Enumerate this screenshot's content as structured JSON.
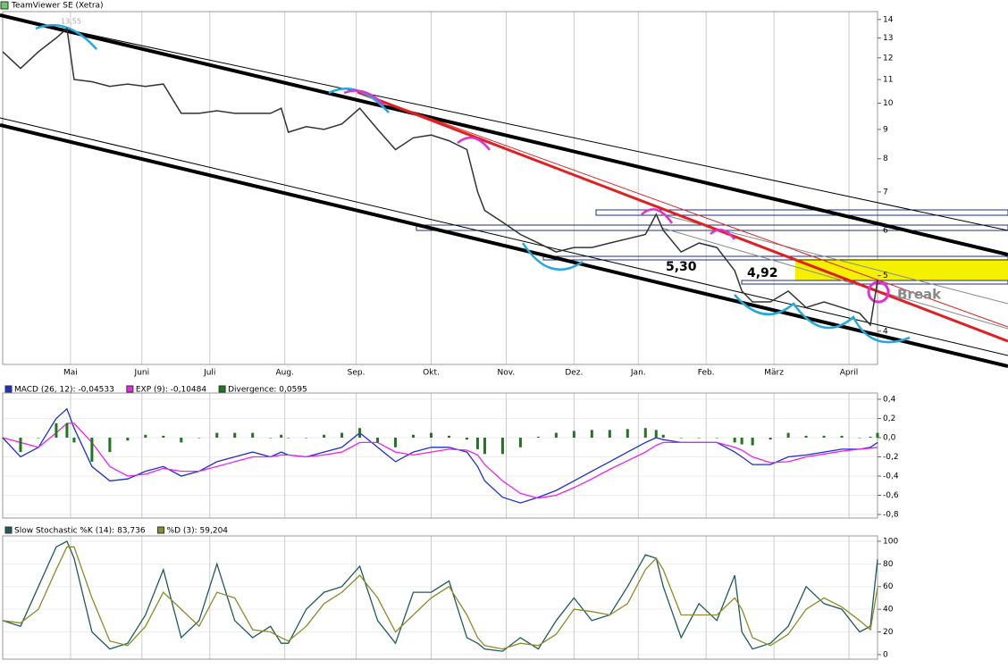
{
  "chart_data": [
    {
      "type": "line",
      "title": "TeamViewer SE (Xetra)",
      "log": true,
      "grid": true,
      "color": "#333333",
      "x": [
        0,
        5,
        10,
        15,
        18,
        20,
        25,
        30,
        35,
        40,
        45,
        50,
        55,
        60,
        65,
        70,
        75,
        78,
        80,
        85,
        90,
        95,
        100,
        105,
        110,
        115,
        120,
        125,
        130,
        133,
        135,
        140,
        145,
        150,
        155,
        160,
        165,
        170,
        175,
        180,
        183,
        185,
        190,
        195,
        200,
        205,
        207,
        210,
        215,
        220,
        225,
        230,
        235,
        240,
        243,
        245
      ],
      "values": [
        12.3,
        11.5,
        12.3,
        13.0,
        13.5,
        11.0,
        10.9,
        10.7,
        10.8,
        10.7,
        10.8,
        9.6,
        9.6,
        9.7,
        9.6,
        9.6,
        9.6,
        9.8,
        8.9,
        9.1,
        9.0,
        9.2,
        9.8,
        9.0,
        8.3,
        8.7,
        8.8,
        8.6,
        8.3,
        7.0,
        6.5,
        6.2,
        5.9,
        5.7,
        5.5,
        5.6,
        5.6,
        5.7,
        5.8,
        5.9,
        6.4,
        6.0,
        5.5,
        5.7,
        5.6,
        5.1,
        4.7,
        4.5,
        4.5,
        4.7,
        4.4,
        4.5,
        4.4,
        4.3,
        4.1,
        4.9
      ],
      "xlim": [
        0,
        245
      ],
      "xticks": [
        {
          "value": 19,
          "label": "Mai"
        },
        {
          "value": 39,
          "label": "Juni"
        },
        {
          "value": 58,
          "label": "Juli"
        },
        {
          "value": 79,
          "label": "Aug."
        },
        {
          "value": 99,
          "label": "Sep."
        },
        {
          "value": 120,
          "label": "Okt."
        },
        {
          "value": 141,
          "label": "Nov."
        },
        {
          "value": 160,
          "label": "Dez."
        },
        {
          "value": 178,
          "label": "Jan."
        },
        {
          "value": 197,
          "label": "Feb."
        },
        {
          "value": 216,
          "label": "März"
        },
        {
          "value": 237,
          "label": "April"
        }
      ],
      "ylim": [
        3.5,
        14.45
      ],
      "yticks": [
        4,
        5,
        6,
        7,
        8,
        9,
        10,
        11,
        12,
        13,
        14
      ],
      "annotations": [
        "5,30",
        "4,92",
        "Break",
        "13,55"
      ]
    },
    {
      "type": "line",
      "grid": true,
      "x": [
        0,
        5,
        10,
        15,
        18,
        20,
        25,
        30,
        35,
        40,
        45,
        50,
        55,
        60,
        65,
        70,
        75,
        78,
        80,
        85,
        90,
        95,
        100,
        105,
        110,
        115,
        120,
        125,
        130,
        133,
        135,
        140,
        145,
        150,
        155,
        160,
        165,
        170,
        175,
        180,
        183,
        185,
        190,
        195,
        200,
        205,
        207,
        210,
        215,
        220,
        225,
        230,
        235,
        240,
        243,
        245
      ],
      "xlim": [
        0,
        245
      ],
      "ylim": [
        -0.837,
        0.465
      ],
      "yticks": [
        {
          "value": 0.4,
          "label": "0,4"
        },
        {
          "value": 0.2,
          "label": "0,2"
        },
        {
          "value": 0,
          "label": "0,0"
        },
        {
          "value": -0.2,
          "label": "-0,2"
        },
        {
          "value": -0.4,
          "label": "-0,4"
        },
        {
          "value": -0.6,
          "label": "-0,6"
        },
        {
          "value": -0.8,
          "label": "-0,8"
        }
      ],
      "series": [
        {
          "name": "MACD (26, 12): -0,04533",
          "color": "#1f2fcf",
          "values": [
            0.0,
            -0.2,
            -0.1,
            0.2,
            0.3,
            0.1,
            -0.3,
            -0.45,
            -0.43,
            -0.35,
            -0.3,
            -0.4,
            -0.35,
            -0.25,
            -0.2,
            -0.15,
            -0.2,
            -0.15,
            -0.18,
            -0.2,
            -0.15,
            -0.1,
            0.05,
            -0.1,
            -0.25,
            -0.15,
            -0.1,
            -0.1,
            -0.15,
            -0.3,
            -0.45,
            -0.62,
            -0.68,
            -0.62,
            -0.55,
            -0.45,
            -0.35,
            -0.25,
            -0.15,
            -0.05,
            0.0,
            -0.02,
            -0.05,
            -0.05,
            -0.05,
            -0.15,
            -0.2,
            -0.28,
            -0.28,
            -0.2,
            -0.18,
            -0.15,
            -0.12,
            -0.12,
            -0.1,
            -0.05
          ]
        },
        {
          "name": "EXP (9): -0,10484",
          "color": "#ee22ee",
          "values": [
            0.0,
            -0.05,
            -0.1,
            0.05,
            0.15,
            0.15,
            -0.05,
            -0.3,
            -0.4,
            -0.38,
            -0.32,
            -0.35,
            -0.35,
            -0.3,
            -0.25,
            -0.2,
            -0.2,
            -0.18,
            -0.18,
            -0.2,
            -0.18,
            -0.15,
            -0.05,
            -0.05,
            -0.15,
            -0.18,
            -0.15,
            -0.12,
            -0.13,
            -0.18,
            -0.28,
            -0.45,
            -0.58,
            -0.63,
            -0.6,
            -0.52,
            -0.43,
            -0.33,
            -0.24,
            -0.15,
            -0.08,
            -0.05,
            -0.05,
            -0.05,
            -0.05,
            -0.1,
            -0.13,
            -0.2,
            -0.26,
            -0.25,
            -0.2,
            -0.17,
            -0.14,
            -0.12,
            -0.11,
            -0.1
          ]
        },
        {
          "name": "Divergence: 0,0595",
          "color": "#1a7a1a",
          "type": "bar",
          "values": [
            0,
            -0.15,
            0,
            0.15,
            0.15,
            -0.05,
            -0.25,
            -0.15,
            -0.03,
            0.03,
            0.02,
            -0.05,
            0,
            0.05,
            0.05,
            0.05,
            0,
            0.03,
            0,
            0,
            0.03,
            0.05,
            0.1,
            -0.05,
            -0.1,
            0.03,
            0.05,
            0.02,
            -0.02,
            -0.12,
            -0.17,
            -0.17,
            -0.1,
            0.01,
            0.05,
            0.07,
            0.08,
            0.08,
            0.09,
            0.1,
            0.08,
            0.03,
            0,
            0,
            0,
            -0.05,
            -0.07,
            -0.08,
            -0.02,
            0.05,
            0.02,
            0.02,
            0.02,
            0,
            0.01,
            0.05
          ]
        }
      ]
    },
    {
      "type": "line",
      "grid": true,
      "x": [
        0,
        5,
        10,
        15,
        18,
        20,
        25,
        30,
        35,
        40,
        45,
        50,
        55,
        60,
        65,
        70,
        75,
        78,
        80,
        85,
        90,
        95,
        100,
        105,
        110,
        115,
        120,
        125,
        130,
        133,
        135,
        140,
        145,
        150,
        155,
        160,
        165,
        170,
        175,
        180,
        183,
        185,
        190,
        195,
        200,
        205,
        207,
        210,
        215,
        220,
        225,
        230,
        235,
        240,
        243,
        245
      ],
      "xlim": [
        0,
        245
      ],
      "ylim": [
        -4,
        104.7
      ],
      "yticks": [
        100,
        80,
        60,
        40,
        20,
        0
      ],
      "series": [
        {
          "name": "Slow Stochastic %K (14): 83,736",
          "color": "#1d5c5c",
          "values": [
            30,
            25,
            60,
            95,
            100,
            85,
            20,
            5,
            10,
            35,
            75,
            15,
            30,
            80,
            30,
            15,
            25,
            10,
            10,
            40,
            55,
            60,
            78,
            30,
            10,
            55,
            55,
            65,
            15,
            10,
            5,
            3,
            15,
            5,
            30,
            50,
            30,
            35,
            60,
            88,
            85,
            60,
            15,
            45,
            30,
            70,
            20,
            5,
            10,
            25,
            60,
            45,
            40,
            20,
            25,
            84
          ]
        },
        {
          "name": "%D (3): 59,204",
          "color": "#8c8c2a",
          "values": [
            30,
            28,
            40,
            75,
            95,
            95,
            50,
            12,
            8,
            25,
            55,
            40,
            25,
            55,
            50,
            22,
            20,
            15,
            12,
            25,
            45,
            55,
            70,
            50,
            20,
            35,
            50,
            60,
            35,
            15,
            8,
            5,
            10,
            8,
            18,
            40,
            38,
            35,
            45,
            75,
            85,
            75,
            35,
            35,
            35,
            50,
            40,
            15,
            8,
            18,
            40,
            50,
            42,
            30,
            22,
            59
          ]
        }
      ]
    }
  ]
}
